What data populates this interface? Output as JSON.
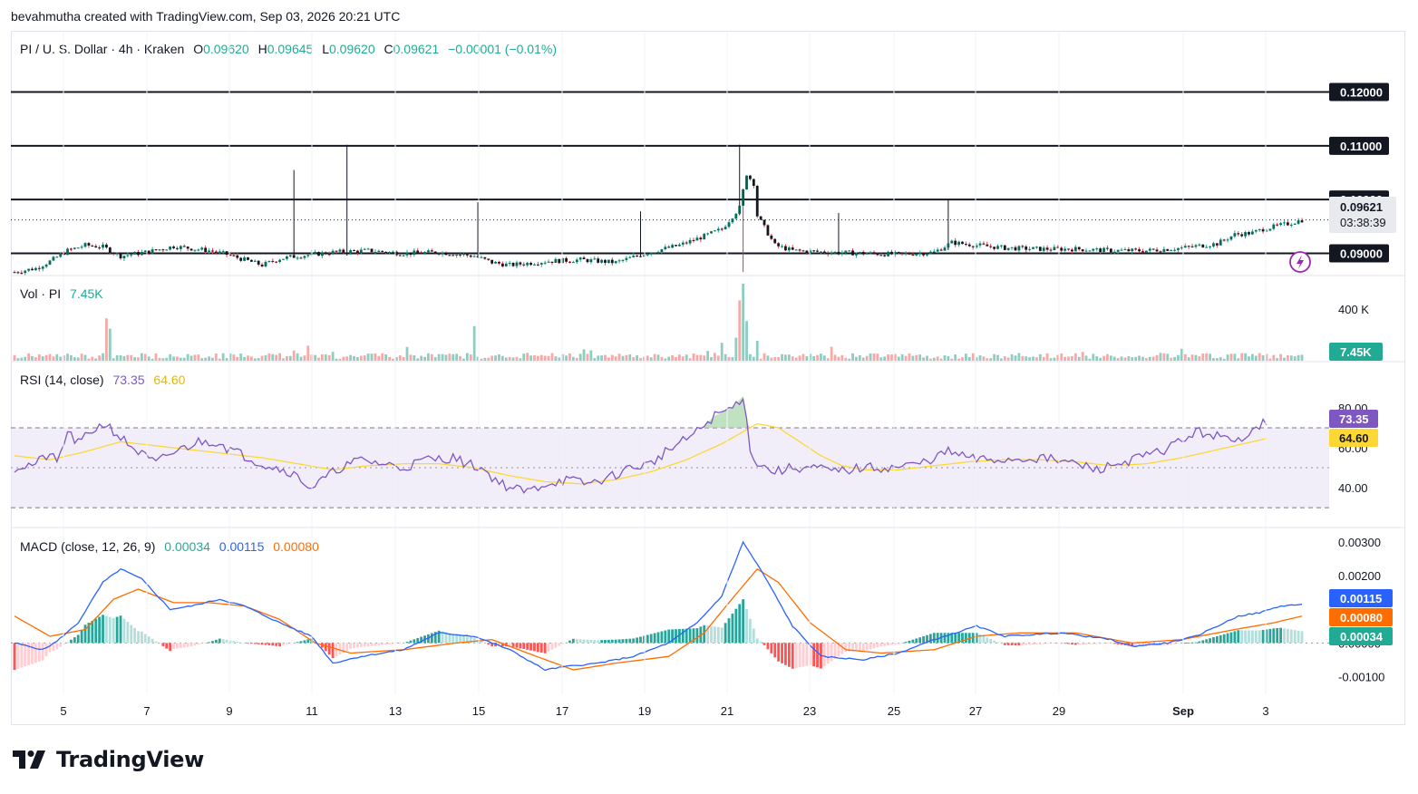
{
  "caption": "bevahmutha created with TradingView.com, Sep 03, 2026 20:21 UTC",
  "brand": {
    "name": "TradingView"
  },
  "colors": {
    "up": "#22ab94",
    "down": "#f23645",
    "vol_up": "#8fcdc0",
    "vol_down": "#f7a9a7",
    "rsi": "#7e57c2",
    "rsi_ma": "#fdd835",
    "macd": "#2962ff",
    "signal": "#ff6d00",
    "black": "#131722"
  },
  "header": {
    "symbol": "PI / U. S. Dollar · 4h · Kraken",
    "o_label": "O",
    "o_val": "0.09620",
    "h_label": "H",
    "h_val": "0.09645",
    "l_label": "L",
    "l_val": "0.09620",
    "c_label": "C",
    "c_val": "0.09621",
    "change": "−0.00001 (−0.01%)"
  },
  "volume_legend": {
    "label": "Vol · PI",
    "value": "7.45K"
  },
  "rsi_legend": {
    "label": "RSI (14, close)",
    "rsi": "73.35",
    "ma": "64.60"
  },
  "macd_legend": {
    "label": "MACD (close, 12, 26, 9)",
    "hist": "0.00034",
    "macd": "0.00115",
    "signal": "0.00080"
  },
  "price_tags": {
    "last": "0.09621",
    "countdown": "03:38:39",
    "vol_tag": "7.45K",
    "rsi_tag": "73.35",
    "rsi_ma_tag": "64.60",
    "macd_tag": "0.00115",
    "signal_tag": "0.00080",
    "hist_tag": "0.00034"
  },
  "chart_data": [
    {
      "type": "candlestick",
      "title": "PI / U. S. Dollar · 4h · Kraken",
      "ylim": [
        0.0862,
        0.1292
      ],
      "horizontal_lines": [
        0.09,
        0.1,
        0.11,
        0.12
      ],
      "price_axis_labels": [
        "0.12000",
        "0.11000",
        "0.10000",
        "0.09000"
      ],
      "x_ticks": [
        "5",
        "7",
        "9",
        "11",
        "13",
        "15",
        "17",
        "19",
        "21",
        "23",
        "25",
        "27",
        "29",
        "Sep",
        "3"
      ],
      "keypoints": [
        [
          0,
          0.0865
        ],
        [
          6,
          0.0872
        ],
        [
          10,
          0.0885
        ],
        [
          15,
          0.0905
        ],
        [
          20,
          0.0915
        ],
        [
          25,
          0.0912
        ],
        [
          30,
          0.0895
        ],
        [
          38,
          0.0903
        ],
        [
          45,
          0.0913
        ],
        [
          55,
          0.0905
        ],
        [
          60,
          0.0898
        ],
        [
          70,
          0.0878
        ],
        [
          75,
          0.089
        ],
        [
          80,
          0.0895
        ],
        [
          90,
          0.0902
        ],
        [
          100,
          0.0905
        ],
        [
          110,
          0.09
        ],
        [
          120,
          0.0902
        ],
        [
          130,
          0.0895
        ],
        [
          135,
          0.0883
        ],
        [
          140,
          0.0878
        ],
        [
          150,
          0.0885
        ],
        [
          160,
          0.0888
        ],
        [
          170,
          0.0883
        ],
        [
          180,
          0.0903
        ],
        [
          188,
          0.0915
        ],
        [
          195,
          0.0932
        ],
        [
          200,
          0.0945
        ],
        [
          205,
          0.0985
        ],
        [
          207,
          0.1048
        ],
        [
          209,
          0.103
        ],
        [
          210,
          0.097
        ],
        [
          215,
          0.0915
        ],
        [
          220,
          0.0905
        ],
        [
          230,
          0.0902
        ],
        [
          240,
          0.09
        ],
        [
          250,
          0.0898
        ],
        [
          260,
          0.0902
        ],
        [
          265,
          0.092
        ],
        [
          272,
          0.0915
        ],
        [
          280,
          0.091
        ],
        [
          290,
          0.0908
        ],
        [
          300,
          0.0908
        ],
        [
          310,
          0.0905
        ],
        [
          320,
          0.0905
        ],
        [
          330,
          0.091
        ],
        [
          340,
          0.0918
        ],
        [
          345,
          0.0935
        ],
        [
          350,
          0.0938
        ],
        [
          353,
          0.0945
        ],
        [
          360,
          0.0955
        ],
        [
          364,
          0.0962
        ]
      ],
      "spikes": [
        [
          79,
          0.1055
        ],
        [
          94,
          0.1102
        ],
        [
          131,
          0.0995
        ],
        [
          205,
          0.1102
        ],
        [
          206,
          0.0865
        ],
        [
          264,
          0.1
        ],
        [
          233,
          0.0975
        ],
        [
          177,
          0.0978
        ]
      ],
      "candle_count": 365,
      "last_close": 0.09621
    },
    {
      "type": "bar",
      "title": "Vol · PI",
      "axis_labels": [
        "400 K"
      ],
      "last_value": "7.45K",
      "spikes": [
        [
          206,
          600000
        ],
        [
          205,
          470000
        ],
        [
          207,
          310000
        ],
        [
          26,
          330000
        ],
        [
          130,
          270000
        ],
        [
          27,
          250000
        ],
        [
          204,
          180000
        ],
        [
          200,
          140000
        ],
        [
          210,
          155000
        ]
      ]
    },
    {
      "type": "line",
      "title": "RSI (14, close)",
      "ylim": [
        26,
        94
      ],
      "axis_labels": [
        "80.00",
        "60.00",
        "40.00"
      ],
      "bands": [
        30,
        70,
        50
      ],
      "series": [
        {
          "name": "RSI",
          "keypoints": [
            [
              0,
              50
            ],
            [
              6,
              52
            ],
            [
              10,
              57
            ],
            [
              12,
              52
            ],
            [
              15,
              68
            ],
            [
              18,
              62
            ],
            [
              23,
              70
            ],
            [
              26,
              72
            ],
            [
              30,
              65
            ],
            [
              35,
              58
            ],
            [
              40,
              52
            ],
            [
              43,
              56
            ],
            [
              48,
              60
            ],
            [
              52,
              63
            ],
            [
              58,
              63
            ],
            [
              60,
              60
            ],
            [
              65,
              56
            ],
            [
              70,
              52
            ],
            [
              78,
              48
            ],
            [
              84,
              40
            ],
            [
              88,
              45
            ],
            [
              92,
              50
            ],
            [
              98,
              54
            ],
            [
              104,
              52
            ],
            [
              110,
              50
            ],
            [
              116,
              54
            ],
            [
              124,
              55
            ],
            [
              128,
              52
            ],
            [
              132,
              50
            ],
            [
              136,
              44
            ],
            [
              140,
              40
            ],
            [
              145,
              38
            ],
            [
              150,
              42
            ],
            [
              156,
              44
            ],
            [
              162,
              42
            ],
            [
              168,
              45
            ],
            [
              174,
              50
            ],
            [
              180,
              52
            ],
            [
              184,
              58
            ],
            [
              188,
              62
            ],
            [
              193,
              68
            ],
            [
              198,
              76
            ],
            [
              203,
              80
            ],
            [
              206,
              86
            ],
            [
              208,
              60
            ],
            [
              210,
              52
            ],
            [
              215,
              48
            ],
            [
              220,
              50
            ],
            [
              226,
              50
            ],
            [
              232,
              48
            ],
            [
              240,
              50
            ],
            [
              248,
              50
            ],
            [
              256,
              52
            ],
            [
              264,
              58
            ],
            [
              272,
              54
            ],
            [
              280,
              54
            ],
            [
              290,
              55
            ],
            [
              300,
              52
            ],
            [
              306,
              49
            ],
            [
              312,
              52
            ],
            [
              318,
              55
            ],
            [
              324,
              58
            ],
            [
              330,
              64
            ],
            [
              335,
              68
            ],
            [
              340,
              66
            ],
            [
              345,
              62
            ],
            [
              350,
              70
            ],
            [
              354,
              73.35
            ]
          ]
        },
        {
          "name": "RSI-based MA",
          "keypoints": [
            [
              0,
              56
            ],
            [
              10,
              54
            ],
            [
              20,
              58
            ],
            [
              30,
              63
            ],
            [
              40,
              61
            ],
            [
              50,
              59
            ],
            [
              60,
              57
            ],
            [
              70,
              55
            ],
            [
              80,
              52
            ],
            [
              90,
              49
            ],
            [
              100,
              51
            ],
            [
              110,
              52
            ],
            [
              120,
              52
            ],
            [
              130,
              50
            ],
            [
              140,
              46
            ],
            [
              150,
              43
            ],
            [
              160,
              42
            ],
            [
              170,
              44
            ],
            [
              180,
              48
            ],
            [
              190,
              54
            ],
            [
              200,
              62
            ],
            [
              206,
              68
            ],
            [
              210,
              72
            ],
            [
              216,
              70
            ],
            [
              222,
              63
            ],
            [
              228,
              56
            ],
            [
              234,
              51
            ],
            [
              240,
              49
            ],
            [
              250,
              49
            ],
            [
              260,
              51
            ],
            [
              270,
              53
            ],
            [
              280,
              54
            ],
            [
              290,
              54
            ],
            [
              300,
              53
            ],
            [
              310,
              51
            ],
            [
              320,
              52
            ],
            [
              330,
              55
            ],
            [
              340,
              59
            ],
            [
              350,
              63
            ],
            [
              354,
              64.6
            ]
          ]
        }
      ]
    },
    {
      "type": "line+bar",
      "title": "MACD (close, 12, 26, 9)",
      "ylim": [
        -0.0015,
        0.0033
      ],
      "axis_labels": [
        "0.00300",
        "0.00200",
        "0.00000",
        "-0.00100"
      ],
      "series": [
        {
          "name": "MACD",
          "keypoints": [
            [
              0,
              0
            ],
            [
              8,
              -0.0002
            ],
            [
              12,
              5e-05
            ],
            [
              18,
              0.0006
            ],
            [
              25,
              0.0018
            ],
            [
              30,
              0.0022
            ],
            [
              36,
              0.0019
            ],
            [
              44,
              0.001
            ],
            [
              50,
              0.0011
            ],
            [
              58,
              0.0013
            ],
            [
              65,
              0.0011
            ],
            [
              75,
              0.0006
            ],
            [
              84,
              0.0002
            ],
            [
              90,
              -0.0006
            ],
            [
              98,
              -0.0004
            ],
            [
              110,
              -0.0002
            ],
            [
              120,
              0.0003
            ],
            [
              130,
              0.0002
            ],
            [
              140,
              -0.0002
            ],
            [
              150,
              -0.0008
            ],
            [
              156,
              -0.0007
            ],
            [
              165,
              -0.0006
            ],
            [
              175,
              -0.0004
            ],
            [
              185,
              0
            ],
            [
              193,
              0.0006
            ],
            [
              200,
              0.0014
            ],
            [
              206,
              0.003
            ],
            [
              212,
              0.002
            ],
            [
              220,
              0.0005
            ],
            [
              228,
              -0.0004
            ],
            [
              240,
              -0.0005
            ],
            [
              250,
              -0.0003
            ],
            [
              260,
              0.0001
            ],
            [
              272,
              0.0005
            ],
            [
              280,
              0.0002
            ],
            [
              296,
              0.0003
            ],
            [
              310,
              0.0001
            ],
            [
              316,
              -0.0001
            ],
            [
              326,
              0
            ],
            [
              334,
              0.0002
            ],
            [
              340,
              0.0005
            ],
            [
              346,
              0.0008
            ],
            [
              352,
              0.0009
            ],
            [
              358,
              0.0011
            ],
            [
              364,
              0.00115
            ]
          ]
        },
        {
          "name": "Signal",
          "keypoints": [
            [
              0,
              0.0008
            ],
            [
              10,
              0.0002
            ],
            [
              20,
              0.0004
            ],
            [
              28,
              0.0013
            ],
            [
              35,
              0.0016
            ],
            [
              45,
              0.0012
            ],
            [
              55,
              0.0012
            ],
            [
              65,
              0.0011
            ],
            [
              75,
              0.0007
            ],
            [
              85,
              0
            ],
            [
              95,
              -0.0003
            ],
            [
              110,
              -0.0002
            ],
            [
              125,
              0
            ],
            [
              135,
              0.0001
            ],
            [
              145,
              -0.0003
            ],
            [
              158,
              -0.0008
            ],
            [
              170,
              -0.0006
            ],
            [
              185,
              -0.0004
            ],
            [
              195,
              0.0003
            ],
            [
              202,
              0.0012
            ],
            [
              210,
              0.0022
            ],
            [
              216,
              0.0018
            ],
            [
              225,
              0.0006
            ],
            [
              235,
              -0.0002
            ],
            [
              245,
              -0.0003
            ],
            [
              260,
              -0.0002
            ],
            [
              272,
              0.0002
            ],
            [
              284,
              0.0003
            ],
            [
              300,
              0.0003
            ],
            [
              316,
              0
            ],
            [
              330,
              0.0001
            ],
            [
              345,
              0.0004
            ],
            [
              356,
              0.0006
            ],
            [
              364,
              0.0008
            ]
          ]
        }
      ],
      "histogram_last": 0.00034
    }
  ]
}
